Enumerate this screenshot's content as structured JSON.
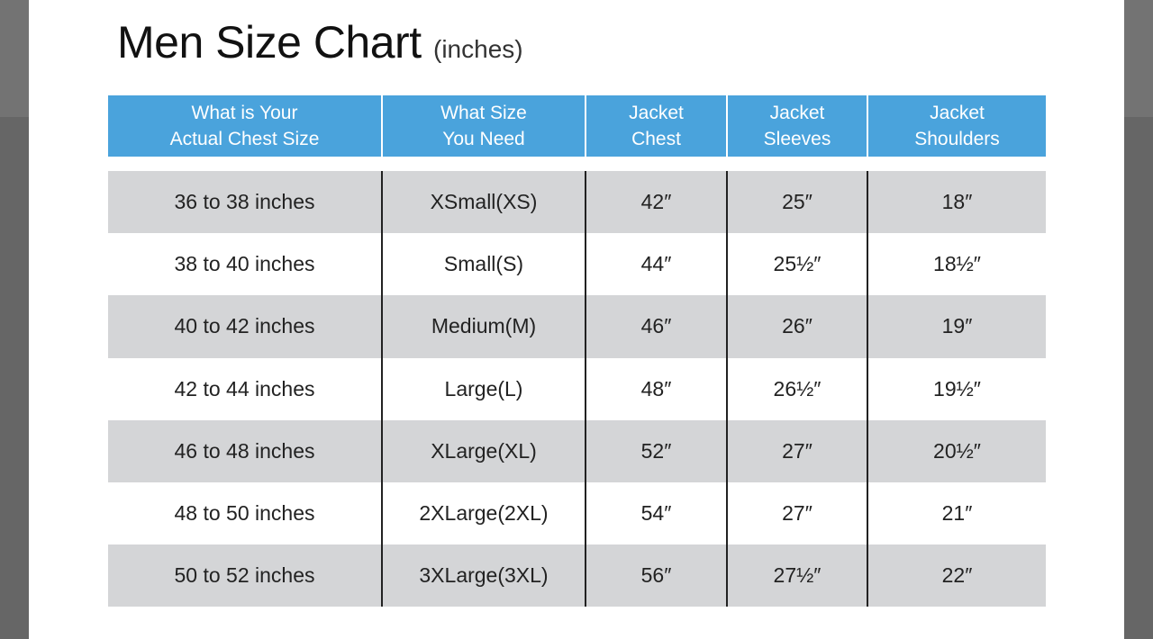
{
  "title": "Men Size Chart",
  "subtitle": "(inches)",
  "colors": {
    "header": "#4aa3dc",
    "stripe": "#d4d5d7"
  },
  "headers": [
    "What is Your\nActual Chest Size",
    "What Size\nYou Need",
    "Jacket\nChest",
    "Jacket\nSleeves",
    "Jacket\nShoulders"
  ],
  "rows": [
    [
      "36 to 38 inches",
      "XSmall(XS)",
      "42″",
      "25″",
      "18″"
    ],
    [
      "38 to 40 inches",
      "Small(S)",
      "44″",
      "25½″",
      "18½″"
    ],
    [
      "40 to 42 inches",
      "Medium(M)",
      "46″",
      "26″",
      "19″"
    ],
    [
      "42 to 44 inches",
      "Large(L)",
      "48″",
      "26½″",
      "19½″"
    ],
    [
      "46 to 48 inches",
      "XLarge(XL)",
      "52″",
      "27″",
      "20½″"
    ],
    [
      "48 to 50 inches",
      "2XLarge(2XL)",
      "54″",
      "27″",
      "21″"
    ],
    [
      "50 to 52 inches",
      "3XLarge(3XL)",
      "56″",
      "27½″",
      "22″"
    ]
  ]
}
